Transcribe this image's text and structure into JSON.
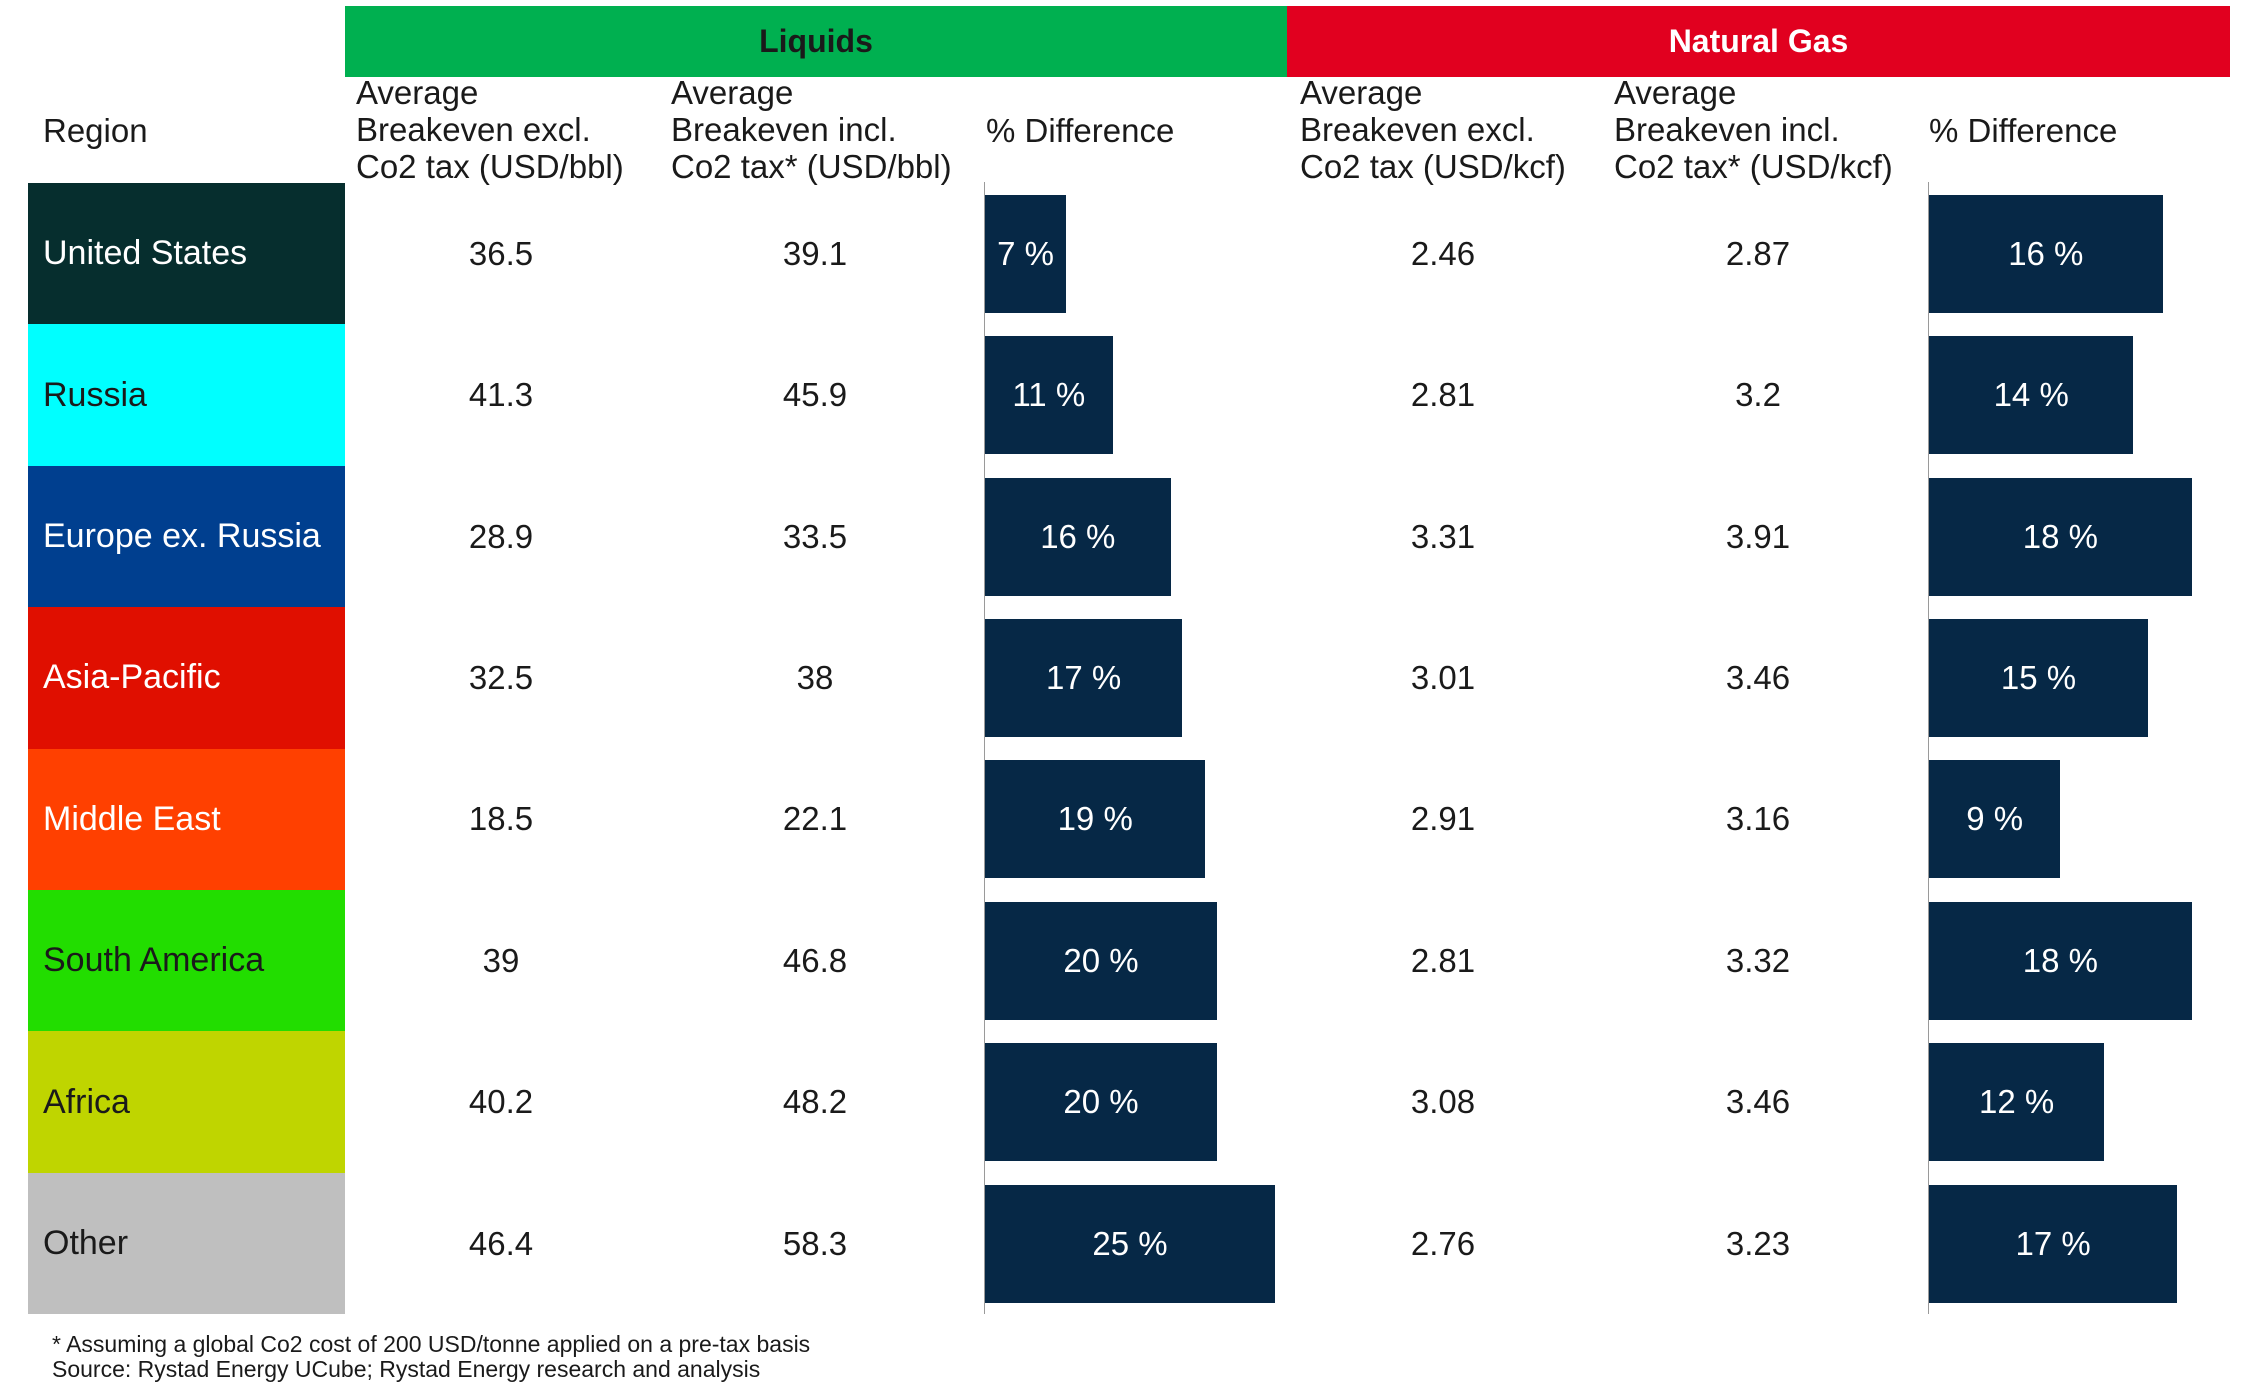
{
  "colors": {
    "liquids_header": "#00B050",
    "gas_header": "#E1001F",
    "bar": "#062846"
  },
  "groups": {
    "liquids": "Liquids",
    "gas": "Natural Gas"
  },
  "headers": {
    "region": "Region",
    "liq_excl": "Average\nBreakeven excl.\nCo2 tax (USD/bbl)",
    "liq_incl": "Average\nBreakeven incl.\nCo2 tax* (USD/bbl)",
    "liq_diff": "% Difference",
    "gas_excl": "Average\nBreakeven excl.\nCo2 tax (USD/kcf)",
    "gas_incl": "Average\nBreakeven incl.\nCo2 tax* (USD/kcf)",
    "gas_diff": "% Difference"
  },
  "chart_data": {
    "type": "table",
    "rows": [
      {
        "region": "United States",
        "color": "#062E2E",
        "text_color": "#FFFFFF",
        "liq_excl": "36.5",
        "liq_incl": "39.1",
        "liq_diff": 7,
        "liq_diff_label": "7 %",
        "gas_excl": "2.46",
        "gas_incl": "2.87",
        "gas_diff": 16,
        "gas_diff_label": "16 %"
      },
      {
        "region": "Russia",
        "color": "#00FFFF",
        "text_color": "#1A1A1A",
        "liq_excl": "41.3",
        "liq_incl": "45.9",
        "liq_diff": 11,
        "liq_diff_label": "11 %",
        "gas_excl": "2.81",
        "gas_incl": "3.2",
        "gas_diff": 14,
        "gas_diff_label": "14 %"
      },
      {
        "region": "Europe ex. Russia",
        "color": "#003F8F",
        "text_color": "#FFFFFF",
        "liq_excl": "28.9",
        "liq_incl": "33.5",
        "liq_diff": 16,
        "liq_diff_label": "16 %",
        "gas_excl": "3.31",
        "gas_incl": "3.91",
        "gas_diff": 18,
        "gas_diff_label": "18 %"
      },
      {
        "region": "Asia-Pacific",
        "color": "#E00F00",
        "text_color": "#FFFFFF",
        "liq_excl": "32.5",
        "liq_incl": "38",
        "liq_diff": 17,
        "liq_diff_label": "17 %",
        "gas_excl": "3.01",
        "gas_incl": "3.46",
        "gas_diff": 15,
        "gas_diff_label": "15 %"
      },
      {
        "region": "Middle East",
        "color": "#FF4000",
        "text_color": "#FFFFFF",
        "liq_excl": "18.5",
        "liq_incl": "22.1",
        "liq_diff": 19,
        "liq_diff_label": "19 %",
        "gas_excl": "2.91",
        "gas_incl": "3.16",
        "gas_diff": 9,
        "gas_diff_label": "9 %"
      },
      {
        "region": "South America",
        "color": "#22DD00",
        "text_color": "#1A1A1A",
        "liq_excl": "39",
        "liq_incl": "46.8",
        "liq_diff": 20,
        "liq_diff_label": "20 %",
        "gas_excl": "2.81",
        "gas_incl": "3.32",
        "gas_diff": 18,
        "gas_diff_label": "18 %"
      },
      {
        "region": "Africa",
        "color": "#BFD500",
        "text_color": "#1A1A1A",
        "liq_excl": "40.2",
        "liq_incl": "48.2",
        "liq_diff": 20,
        "liq_diff_label": "20 %",
        "gas_excl": "3.08",
        "gas_incl": "3.46",
        "gas_diff": 12,
        "gas_diff_label": "12 %"
      },
      {
        "region": "Other",
        "color": "#BFBFBF",
        "text_color": "#1A1A1A",
        "liq_excl": "46.4",
        "liq_incl": "58.3",
        "liq_diff": 25,
        "liq_diff_label": "25 %",
        "gas_excl": "2.76",
        "gas_incl": "3.23",
        "gas_diff": 17,
        "gas_diff_label": "17 %"
      }
    ]
  },
  "footnotes": {
    "assumption": "* Assuming a global Co2 cost of 200 USD/tonne applied on a pre-tax basis",
    "source": "Source: Rystad Energy UCube; Rystad Energy research and analysis"
  }
}
